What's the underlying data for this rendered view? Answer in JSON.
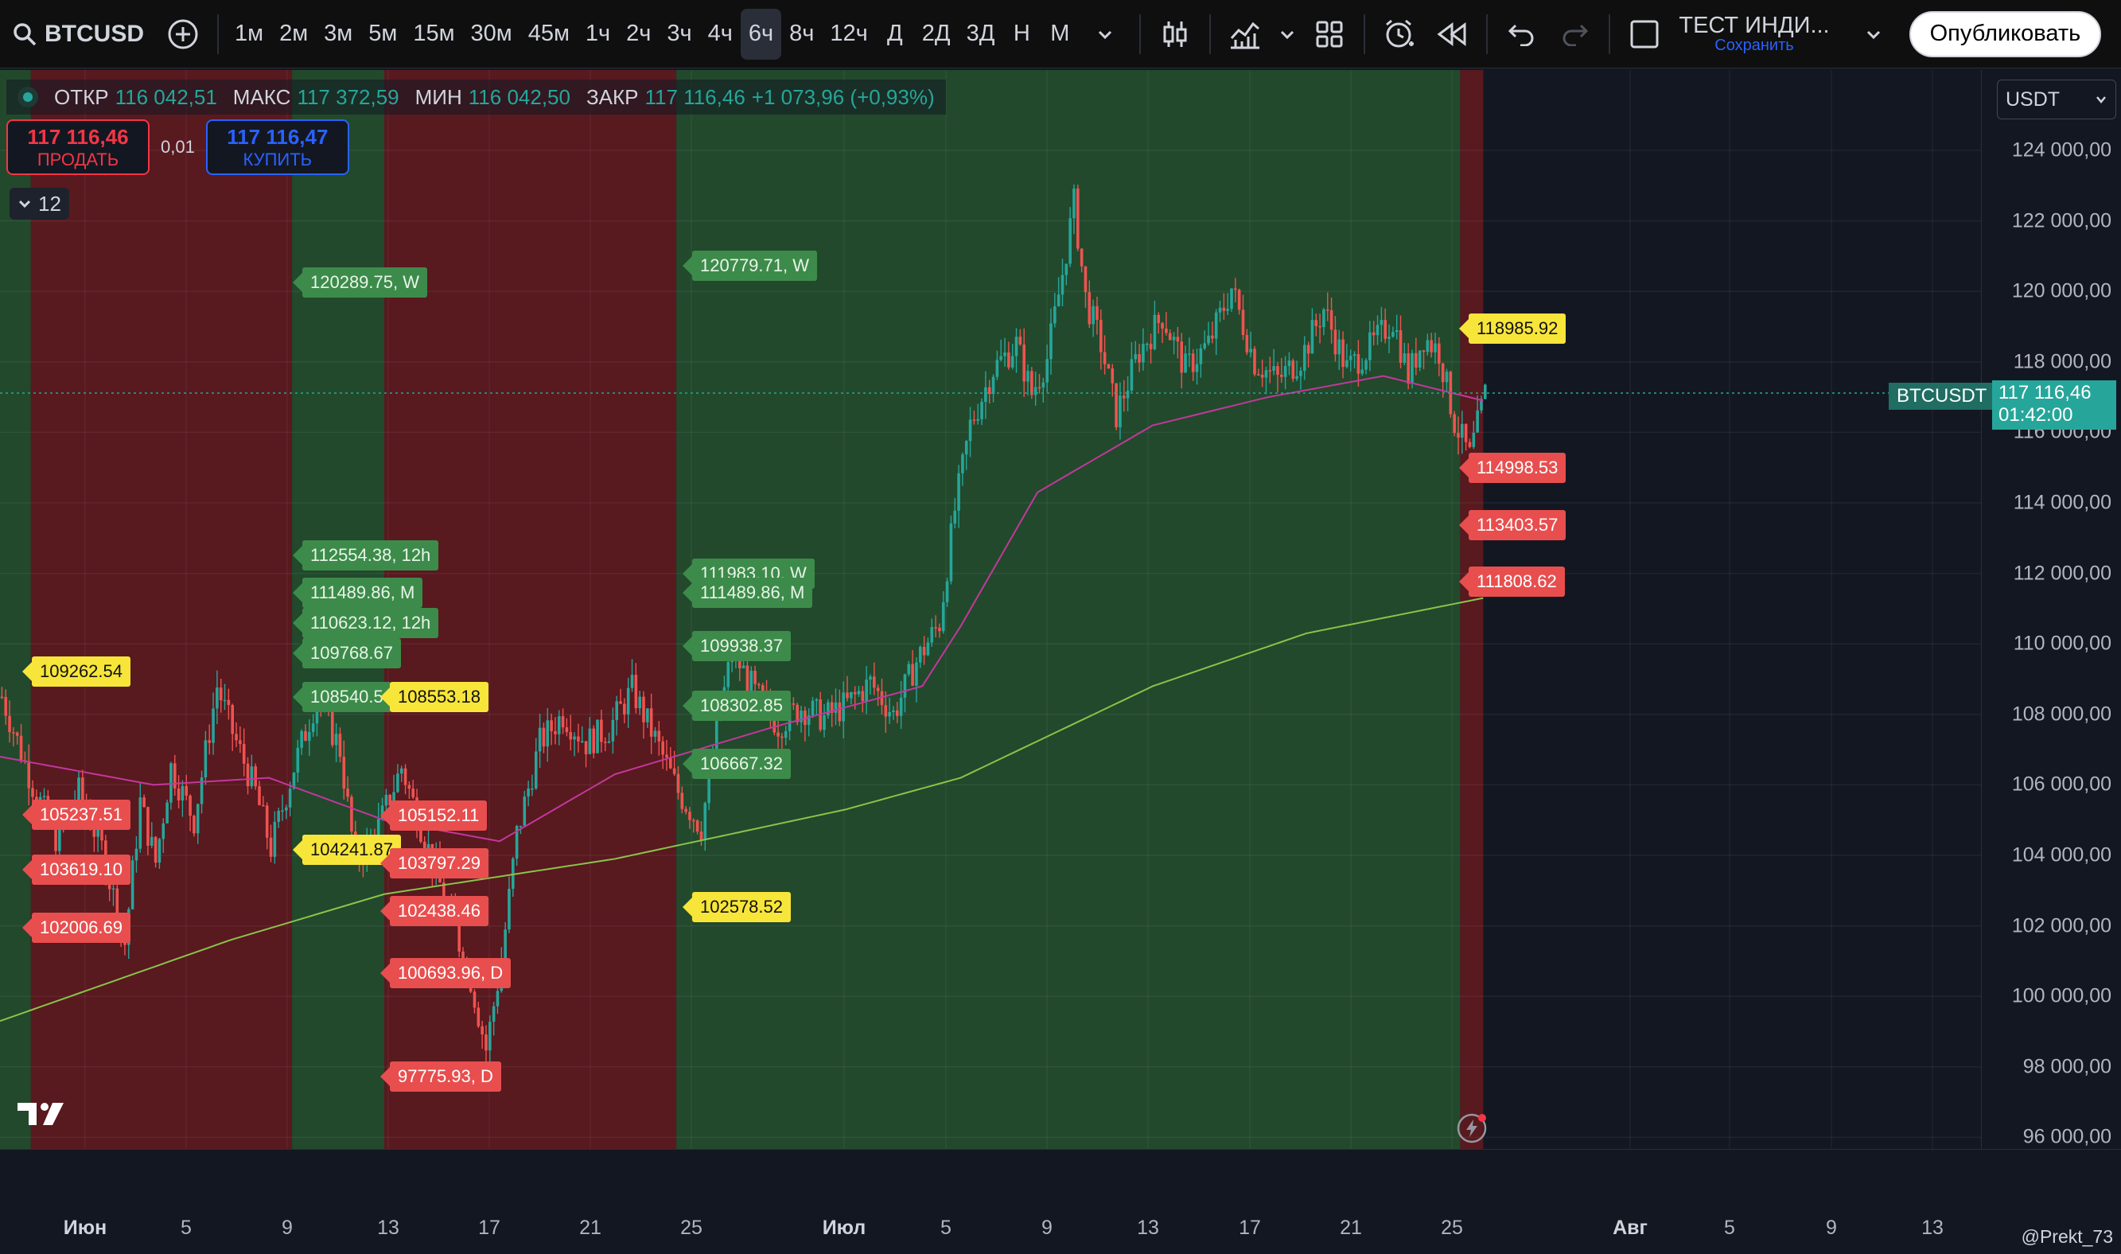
{
  "toolbar": {
    "symbol": "BTCUSD",
    "intervals": [
      "1м",
      "2м",
      "3м",
      "5м",
      "15м",
      "30м",
      "45м",
      "1ч",
      "2ч",
      "3ч",
      "4ч",
      "6ч",
      "8ч",
      "12ч",
      "Д",
      "2Д",
      "3Д",
      "Н",
      "М"
    ],
    "active_interval": "6ч",
    "indicator_title": "ТЕСТ ИНДИ...",
    "indicator_save": "Сохранить",
    "publish": "Опубликовать"
  },
  "legend": {
    "open_label": "ОТКР",
    "open": "116 042,51",
    "high_label": "МАКС",
    "high": "117 372,59",
    "low_label": "МИН",
    "low": "116 042,50",
    "close_label": "ЗАКР",
    "close": "117 116,46",
    "change": "+1 073,96 (+0,93%)"
  },
  "trade": {
    "sell_price": "117 116,46",
    "sell_label": "ПРОДАТЬ",
    "spread": "0,01",
    "buy_price": "117 116,47",
    "buy_label": "КУПИТЬ"
  },
  "collapse_count": "12",
  "currency": "USDT",
  "last_price": {
    "symbol": "BTCUSDT",
    "price": "117 116,46",
    "countdown": "01:42:00"
  },
  "price_axis": [
    "124 000,00",
    "122 000,00",
    "120 000,00",
    "118 000,00",
    "116 000,00",
    "114 000,00",
    "112 000,00",
    "110 000,00",
    "108 000,00",
    "106 000,00",
    "104 000,00",
    "102 000,00",
    "100 000,00",
    "98 000,00",
    "96 000,00"
  ],
  "time_axis": [
    {
      "label": "Июн",
      "major": true
    },
    {
      "label": "5"
    },
    {
      "label": "9"
    },
    {
      "label": "13"
    },
    {
      "label": "17"
    },
    {
      "label": "21"
    },
    {
      "label": "25"
    },
    {
      "label": "Июл",
      "major": true
    },
    {
      "label": "5"
    },
    {
      "label": "9"
    },
    {
      "label": "13"
    },
    {
      "label": "17"
    },
    {
      "label": "21"
    },
    {
      "label": "25"
    },
    {
      "label": "Авг",
      "major": true
    },
    {
      "label": "5"
    },
    {
      "label": "9"
    },
    {
      "label": "13"
    }
  ],
  "markers": [
    {
      "text": "120289.75, W",
      "color": "green"
    },
    {
      "text": "120779.71, W",
      "color": "green"
    },
    {
      "text": "118985.92",
      "color": "yellow"
    },
    {
      "text": "114998.53",
      "color": "red"
    },
    {
      "text": "113403.57",
      "color": "red"
    },
    {
      "text": "111808.62",
      "color": "red"
    },
    {
      "text": "112554.38, 12h",
      "color": "green"
    },
    {
      "text": "111489.86, M",
      "color": "green"
    },
    {
      "text": "110623.12, 12h",
      "color": "green"
    },
    {
      "text": "109768.67",
      "color": "green"
    },
    {
      "text": "108540.5",
      "color": "green"
    },
    {
      "text": "108553.18",
      "color": "yellow"
    },
    {
      "text": "111983.10, W",
      "color": "green"
    },
    {
      "text": "111489.86, M",
      "color": "green"
    },
    {
      "text": "109938.37",
      "color": "green"
    },
    {
      "text": "108302.85",
      "color": "green"
    },
    {
      "text": "106667.32",
      "color": "green"
    },
    {
      "text": "102578.52",
      "color": "yellow"
    },
    {
      "text": "109262.54",
      "color": "yellow"
    },
    {
      "text": "105237.51",
      "color": "red"
    },
    {
      "text": "103619.10",
      "color": "red"
    },
    {
      "text": "102006.69",
      "color": "red"
    },
    {
      "text": "104241.87",
      "color": "yellow"
    },
    {
      "text": "105152.11",
      "color": "red"
    },
    {
      "text": "103797.29",
      "color": "red"
    },
    {
      "text": "102438.46",
      "color": "red"
    },
    {
      "text": "100693.96, D",
      "color": "red"
    },
    {
      "text": "97775.93, D",
      "color": "red"
    }
  ],
  "chart_data": {
    "type": "candlestick",
    "symbol": "BTCUSDT",
    "timeframe": "6ч",
    "ylim": [
      95000,
      125000
    ],
    "trend_points": [
      [
        0,
        108500
      ],
      [
        8,
        106000
      ],
      [
        14,
        104500
      ],
      [
        20,
        105800
      ],
      [
        26,
        104200
      ],
      [
        32,
        101500
      ],
      [
        36,
        105500
      ],
      [
        40,
        103800
      ],
      [
        44,
        106500
      ],
      [
        50,
        105000
      ],
      [
        56,
        108800
      ],
      [
        60,
        107500
      ],
      [
        66,
        105800
      ],
      [
        70,
        104200
      ],
      [
        76,
        106500
      ],
      [
        82,
        108500
      ],
      [
        88,
        107000
      ],
      [
        92,
        103800
      ],
      [
        98,
        104800
      ],
      [
        104,
        106500
      ],
      [
        110,
        104500
      ],
      [
        116,
        102500
      ],
      [
        122,
        100500
      ],
      [
        126,
        98500
      ],
      [
        130,
        101000
      ],
      [
        134,
        104600
      ],
      [
        140,
        107200
      ],
      [
        146,
        108000
      ],
      [
        152,
        107200
      ],
      [
        158,
        107600
      ],
      [
        164,
        108700
      ],
      [
        170,
        107300
      ],
      [
        176,
        105800
      ],
      [
        182,
        104800
      ],
      [
        186,
        107500
      ],
      [
        190,
        109800
      ],
      [
        196,
        108600
      ],
      [
        202,
        107700
      ],
      [
        208,
        108200
      ],
      [
        214,
        107900
      ],
      [
        220,
        108300
      ],
      [
        226,
        108900
      ],
      [
        232,
        108000
      ],
      [
        238,
        109500
      ],
      [
        244,
        110600
      ],
      [
        248,
        113800
      ],
      [
        252,
        116200
      ],
      [
        258,
        117800
      ],
      [
        264,
        118500
      ],
      [
        268,
        117100
      ],
      [
        272,
        118100
      ],
      [
        276,
        120500
      ],
      [
        279,
        122500
      ],
      [
        282,
        119800
      ],
      [
        286,
        118500
      ],
      [
        290,
        116500
      ],
      [
        296,
        118300
      ],
      [
        302,
        119300
      ],
      [
        308,
        117800
      ],
      [
        314,
        118500
      ],
      [
        320,
        120100
      ],
      [
        326,
        118000
      ],
      [
        332,
        117500
      ],
      [
        338,
        118100
      ],
      [
        344,
        119500
      ],
      [
        350,
        117800
      ],
      [
        356,
        118400
      ],
      [
        362,
        119200
      ],
      [
        366,
        117600
      ],
      [
        370,
        118700
      ],
      [
        374,
        118300
      ],
      [
        378,
        116300
      ],
      [
        382,
        115300
      ],
      [
        386,
        117100
      ]
    ],
    "ma_fast_points": [
      [
        0,
        106800
      ],
      [
        40,
        106000
      ],
      [
        70,
        106200
      ],
      [
        100,
        105000
      ],
      [
        130,
        104400
      ],
      [
        160,
        106300
      ],
      [
        200,
        107600
      ],
      [
        240,
        108800
      ],
      [
        250,
        110500
      ],
      [
        270,
        114300
      ],
      [
        300,
        116200
      ],
      [
        330,
        117000
      ],
      [
        360,
        117600
      ],
      [
        386,
        116900
      ]
    ],
    "ma_slow_points": [
      [
        0,
        99300
      ],
      [
        60,
        101600
      ],
      [
        100,
        102900
      ],
      [
        160,
        103900
      ],
      [
        220,
        105300
      ],
      [
        250,
        106200
      ],
      [
        300,
        108800
      ],
      [
        340,
        110300
      ],
      [
        386,
        111300
      ]
    ],
    "zones": [
      {
        "start": 0,
        "end": 8,
        "color": "green"
      },
      {
        "start": 8,
        "end": 76,
        "color": "red"
      },
      {
        "start": 76,
        "end": 100,
        "color": "green"
      },
      {
        "start": 100,
        "end": 176,
        "color": "red"
      },
      {
        "start": 176,
        "end": 380,
        "color": "green"
      },
      {
        "start": 380,
        "end": 386,
        "color": "red"
      }
    ]
  },
  "credit": "@Prekt_73"
}
